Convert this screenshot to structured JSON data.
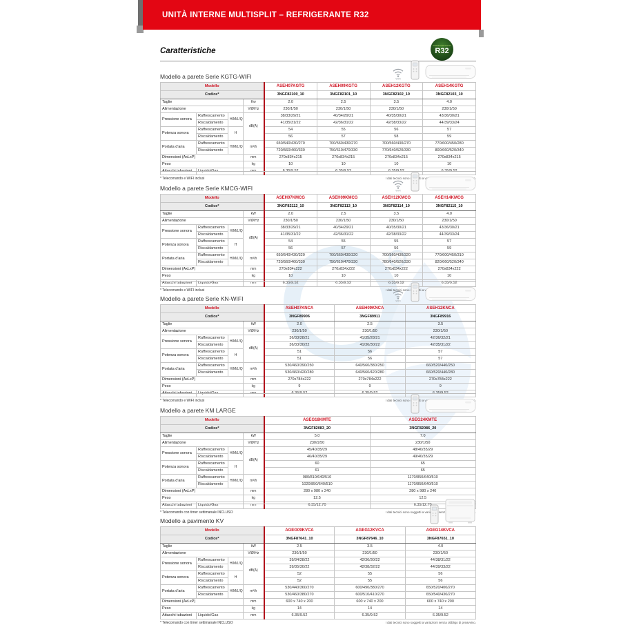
{
  "banner": {
    "title": "UNITÀ INTERNE MULTISPLIT – REFRIGERANTE R32"
  },
  "heading": "Caratteristiche",
  "badge": {
    "small": "REFRIGERANTE",
    "big": "R32"
  },
  "labels": {
    "modello": "Modello",
    "codice": "Codice*"
  },
  "disclaimer": "I dati tecnici sono soggetti a variazioni senza obbligo di preavviso.",
  "sections": [
    {
      "id": "kgtg-wifi",
      "title": "Modello a parete Serie KGTG-WIFI",
      "icons": [
        "wifi-icon",
        "remote-icon",
        "wall-unit-image"
      ],
      "note": "* Telecomando e WIFI inclusi",
      "models": [
        "ASEH07KGTG",
        "ASEH09KGTG",
        "ASEH12KGTG",
        "ASEH14KGTG"
      ],
      "codes": [
        "3NGF82100_10",
        "3NGF82101_10",
        "3NGF82102_10",
        "3NGF82103_10"
      ],
      "rows": [
        {
          "label": "Taglie",
          "ls": 3,
          "unit": "Kw",
          "values": [
            "2.0",
            "2.5",
            "3.5",
            "4.0"
          ]
        },
        {
          "label": "Alimentazione",
          "ls": 3,
          "unit": "V/Ø/Hz",
          "values": [
            "230/1/50",
            "230/1/50",
            "230/1/50",
            "230/1/50"
          ]
        },
        {
          "label": "Pressione sonora",
          "lr": 2,
          "sub": "Raffrescamento",
          "scale": "H/M/L/Q",
          "sr": 2,
          "unit": "dB(A)",
          "ur": 4,
          "values": [
            "38/33/29/21",
            "40/34/29/21",
            "40/35/30/21",
            "43/36/30/21"
          ]
        },
        {
          "sub": "Riscaldamento",
          "values": [
            "41/35/31/22",
            "42/36/31/22",
            "42/38/33/22",
            "44/39/33/24"
          ]
        },
        {
          "label": "Potenza sonora",
          "lr": 2,
          "sub": "Raffrescamento",
          "scale": "H",
          "sr": 2,
          "values": [
            "54",
            "55",
            "56",
            "57"
          ]
        },
        {
          "sub": "Riscaldamento",
          "values": [
            "56",
            "57",
            "58",
            "59"
          ]
        },
        {
          "label": "Portata d'aria",
          "lr": 2,
          "sub": "Raffrescamento",
          "scale": "H/M/L/Q",
          "sr": 2,
          "unit": "m³/h",
          "ur": 2,
          "values": [
            "650/540/430/270",
            "700/560/430/270",
            "700/560/430/270",
            "770/600/450/280"
          ]
        },
        {
          "sub": "Riscaldamento",
          "values": [
            "720/560/460/330",
            "750/610/470/330",
            "770/640/520/330",
            "800/660/520/340"
          ]
        },
        {
          "label": "Dimensioni (AxLxP)",
          "ls": 3,
          "unit": "mm",
          "values": [
            "270x834x215",
            "270x834x215",
            "270x834x215",
            "270x834x215"
          ]
        },
        {
          "label": "Peso",
          "ls": 3,
          "unit": "kg",
          "values": [
            "10",
            "10",
            "10",
            "10"
          ]
        },
        {
          "label": "Attacchi tubazioni",
          "sub": "Liquido/Gas",
          "ss": 2,
          "unit": "mm",
          "values": [
            "6.35/9.52",
            "6.35/9.52",
            "6.35/9.52",
            "6.35/9.52"
          ]
        }
      ]
    },
    {
      "id": "kmcg-wifi",
      "title": "Modello a parete Serie KMCG-WIFI",
      "icons": [
        "wifi-icon",
        "remote-icon",
        "wall-unit-image"
      ],
      "note": "* Telecomando e WIFI inclusi",
      "models": [
        "ASEH07KMCG",
        "ASEH09KMCG",
        "ASEH12KMCG",
        "ASEH14KMCG"
      ],
      "codes": [
        "3NGF82112_10",
        "3NGF82113_10",
        "3NGF82114_10",
        "3NGF82115_10"
      ],
      "rows": [
        {
          "label": "Taglie",
          "ls": 3,
          "unit": "kW",
          "values": [
            "2.0",
            "2.5",
            "3.5",
            "4.0"
          ]
        },
        {
          "label": "Alimentazione",
          "ls": 3,
          "unit": "V/Ø/Hz",
          "values": [
            "230/1/50",
            "230/1/50",
            "230/1/50",
            "230/1/50"
          ]
        },
        {
          "label": "Pressione sonora",
          "lr": 2,
          "sub": "Raffrescamento",
          "scale": "H/M/L/Q",
          "sr": 2,
          "unit": "dB(A)",
          "ur": 4,
          "values": [
            "38/33/29/21",
            "40/34/29/21",
            "40/35/30/21",
            "43/36/30/21"
          ]
        },
        {
          "sub": "Riscaldamento",
          "values": [
            "41/35/31/22",
            "42/36/31/22",
            "42/38/33/22",
            "44/39/33/24"
          ]
        },
        {
          "label": "Potenza sonora",
          "lr": 2,
          "sub": "Raffrescamento",
          "scale": "H",
          "sr": 2,
          "values": [
            "54",
            "55",
            "55",
            "57"
          ]
        },
        {
          "sub": "Riscaldamento",
          "values": [
            "56",
            "57",
            "56",
            "59"
          ]
        },
        {
          "label": "Portata d'aria",
          "lr": 2,
          "sub": "Raffrescamento",
          "scale": "H/M/L/Q",
          "sr": 2,
          "unit": "m³/h",
          "ur": 2,
          "values": [
            "650/540/430/320",
            "700/560/430/320",
            "700/560/430/320",
            "770/600/450/310"
          ]
        },
        {
          "sub": "Riscaldamento",
          "values": [
            "720/560/460/330",
            "750/610/470/330",
            "780/640/520/330",
            "820/660/520/340"
          ]
        },
        {
          "label": "Dimensioni (AxLxP)",
          "ls": 3,
          "unit": "mm",
          "values": [
            "270x834x222",
            "270x834x222",
            "270x834x222",
            "270x834x222"
          ]
        },
        {
          "label": "Peso",
          "ls": 3,
          "unit": "kg",
          "values": [
            "10",
            "10",
            "10",
            "10"
          ]
        },
        {
          "label": "Attacchi tubazioni",
          "sub": "Liquido/Gas",
          "ss": 2,
          "unit": "mm",
          "values": [
            "6.35/9.52",
            "6.35/9.52",
            "6.35/9.52",
            "6.35/9.52"
          ]
        }
      ]
    },
    {
      "id": "kn-wifi",
      "title": "Modello a parete Serie KN-WIFI",
      "icons": [
        "wifi-icon",
        "remote-icon",
        "wall-unit-image"
      ],
      "note": "* Telecomando e WIFI inclusi",
      "models": [
        "ASEH07KNCA",
        "ASEH09KNCA",
        "ASEH12KNCA"
      ],
      "codes": [
        "3NGF89906",
        "3NGF89911",
        "3NGF89916"
      ],
      "rows": [
        {
          "label": "Taglie",
          "ls": 3,
          "unit": "kW",
          "values": [
            "2.0",
            "2.5",
            "3.5"
          ]
        },
        {
          "label": "Alimentazione",
          "ls": 3,
          "unit": "V/Ø/Hz",
          "values": [
            "230/1/50",
            "230/1/50",
            "230/1/50"
          ]
        },
        {
          "label": "Pressione sonora",
          "lr": 2,
          "sub": "Raffrescamento",
          "scale": "H/M/L/Q",
          "sr": 2,
          "unit": "dB(A)",
          "ur": 4,
          "values": [
            "36/33/28/21",
            "41/35/28/21",
            "42/36/32/21"
          ]
        },
        {
          "sub": "Riscaldamento",
          "values": [
            "36/33/30/22",
            "41/36/30/22",
            "42/35/31/22"
          ]
        },
        {
          "label": "Potenza sonora",
          "lr": 2,
          "sub": "Raffrescamento",
          "scale": "H",
          "sr": 2,
          "values": [
            "51",
            "56",
            "57"
          ]
        },
        {
          "sub": "Riscaldamento",
          "values": [
            "51",
            "56",
            "57"
          ]
        },
        {
          "label": "Portata d'aria",
          "lr": 2,
          "sub": "Raffrescamento",
          "scale": "H/M/L/Q",
          "sr": 2,
          "unit": "m³/h",
          "ur": 2,
          "values": [
            "530/460/390/250",
            "640/560/380/250",
            "660/520/440/250"
          ]
        },
        {
          "sub": "Riscaldamento",
          "values": [
            "530/460/420/280",
            "640/560/420/280",
            "660/520/440/280"
          ]
        },
        {
          "label": "Dimensioni (AxLxP)",
          "ls": 3,
          "unit": "mm",
          "values": [
            "270x784x222",
            "270x784x222",
            "270x784x222"
          ]
        },
        {
          "label": "Peso",
          "ls": 3,
          "unit": "kg",
          "values": [
            "9",
            "9",
            "9"
          ]
        },
        {
          "label": "Attacchi tubazioni",
          "sub": "Liquido/Gas",
          "ss": 2,
          "unit": "mm",
          "values": [
            "6.35/9.52",
            "6.35/9.52",
            "6.35/9.52"
          ]
        }
      ]
    },
    {
      "id": "km-large",
      "title": "Modello a parete KM LARGE",
      "icons": [
        "remote-icon",
        "wall-unit-image"
      ],
      "note": "* Telecomando con timer settimanale INCLUSO",
      "models": [
        "ASEG18KMTE",
        "ASEG24KMTE"
      ],
      "codes": [
        "3NGF82083_20",
        "3NGF82086_20"
      ],
      "rows": [
        {
          "label": "Taglie",
          "ls": 3,
          "unit": "kW",
          "values": [
            "5.0",
            "7.0"
          ]
        },
        {
          "label": "Alimentazione",
          "ls": 3,
          "unit": "V/Ø/Hz",
          "values": [
            "230/1/50",
            "230/1/50"
          ]
        },
        {
          "label": "Pressione sonora",
          "lr": 2,
          "sub": "Raffrescamento",
          "scale": "H/M/L/Q",
          "sr": 2,
          "unit": "dB(A)",
          "ur": 4,
          "values": [
            "45/40/35/29",
            "48/40/35/29"
          ]
        },
        {
          "sub": "Riscaldamento",
          "values": [
            "46/40/35/29",
            "49/40/35/29"
          ]
        },
        {
          "label": "Potenza sonora",
          "lr": 2,
          "sub": "Raffrescamento",
          "scale": "H",
          "sr": 2,
          "values": [
            "60",
            "65"
          ]
        },
        {
          "sub": "Riscaldamento",
          "values": [
            "61",
            "65"
          ]
        },
        {
          "label": "Portata d'aria",
          "lr": 2,
          "sub": "Raffrescamento",
          "scale": "H/M/L/Q",
          "sr": 2,
          "unit": "m³/h",
          "ur": 2,
          "values": [
            "980/810/640/510",
            "1170/850/640/510"
          ]
        },
        {
          "sub": "Riscaldamento",
          "values": [
            "1020/850/640/510",
            "1170/850/640/510"
          ]
        },
        {
          "label": "Dimensioni (AxLxP)",
          "ls": 3,
          "unit": "mm",
          "values": [
            "280 x 980 x 240",
            "280 x 980 x 240"
          ]
        },
        {
          "label": "Peso",
          "ls": 3,
          "unit": "kg",
          "values": [
            "12.5",
            "12.5"
          ]
        },
        {
          "label": "Attacchi tubazioni",
          "sub": "Liquido/Gas",
          "ss": 2,
          "unit": "mm",
          "values": [
            "6.35/12.70",
            "6.35/12.70"
          ]
        }
      ]
    },
    {
      "id": "kv-pavimento",
      "title": "Modello a pavimento KV",
      "icons": [
        "remote-icon",
        "floor-unit-image"
      ],
      "note": "* Telecomando con timer settimanale INCLUSO",
      "models": [
        "AGEG09KVCA",
        "AGEG12KVCA",
        "AGEG14KVCA"
      ],
      "codes": [
        "3NGF87641_10",
        "3NGF87646_10",
        "3NGF87651_10"
      ],
      "rows": [
        {
          "label": "Taglie",
          "ls": 3,
          "unit": "kW",
          "values": [
            "2.5",
            "3.5",
            "4.0"
          ]
        },
        {
          "label": "Alimentazione",
          "ls": 3,
          "unit": "V/Ø/Hz",
          "values": [
            "230/1/50",
            "230/1/50",
            "230/1/50"
          ]
        },
        {
          "label": "Pressione sonora",
          "lr": 2,
          "sub": "Raffrescamento",
          "scale": "H/M/L/Q",
          "sr": 2,
          "unit": "dB(A)",
          "ur": 4,
          "values": [
            "39/34/28/22",
            "42/36/30/22",
            "44/38/31/22"
          ]
        },
        {
          "sub": "Riscaldamento",
          "values": [
            "39/35/30/22",
            "42/38/32/22",
            "44/39/33/22"
          ]
        },
        {
          "label": "Potenza sonora",
          "lr": 2,
          "sub": "Raffrescamento",
          "scale": "H",
          "sr": 2,
          "values": [
            "52",
            "55",
            "56"
          ]
        },
        {
          "sub": "Riscaldamento",
          "values": [
            "52",
            "55",
            "56"
          ]
        },
        {
          "label": "Portata d'aria",
          "lr": 2,
          "sub": "Raffrescamento",
          "scale": "H/M/L/Q",
          "sr": 2,
          "unit": "m³/h",
          "ur": 2,
          "values": [
            "530/440/360/270",
            "600/490/380/270",
            "650/520/400/270"
          ]
        },
        {
          "sub": "Riscaldamento",
          "values": [
            "530/460/380/270",
            "600/510/410/270",
            "650/540/430/270"
          ]
        },
        {
          "label": "Dimensioni (AxLxP)",
          "ls": 3,
          "unit": "mm",
          "values": [
            "600 x 740 x 200",
            "600 x 740 x 200",
            "600 x 740 x 200"
          ]
        },
        {
          "label": "Peso",
          "ls": 3,
          "unit": "kg",
          "values": [
            "14",
            "14",
            "14"
          ]
        },
        {
          "label": "Attacchi tubazioni",
          "sub": "Liquido/Gas",
          "ss": 2,
          "unit": "mm",
          "values": [
            "6.35/9.52",
            "6.35/9.52",
            "6.35/9.52"
          ]
        }
      ]
    }
  ]
}
